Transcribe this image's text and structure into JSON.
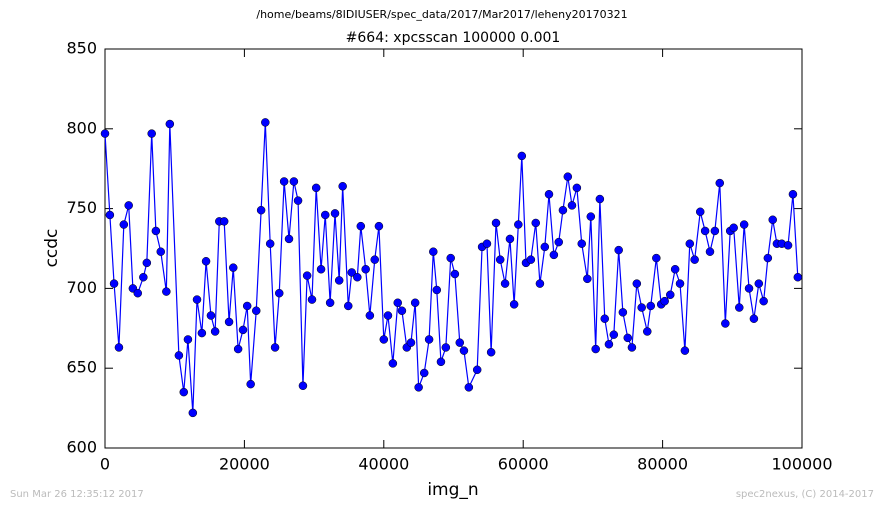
{
  "chart_data": {
    "type": "line",
    "suptitle": "/home/beams/8IDIUSER/spec_data/2017/Mar2017/leheny20170321",
    "title": "#664: xpcsscan 100000 0.001",
    "xlabel": "img_n",
    "ylabel": "ccdc",
    "footer_left": "Sun Mar 26 12:35:12 2017",
    "footer_right": "spec2nexus, (C) 2014-2017",
    "color": "#0000ff",
    "marker": "circle",
    "xlim": [
      0,
      100000
    ],
    "xticks": [
      0,
      20000,
      40000,
      60000,
      80000,
      100000
    ],
    "ylim": [
      600,
      850
    ],
    "yticks": [
      600,
      650,
      700,
      750,
      800,
      850
    ],
    "x": [
      0,
      700,
      1300,
      2000,
      2700,
      3400,
      4000,
      4700,
      5500,
      6000,
      6700,
      7300,
      8000,
      8800,
      9300,
      10600,
      11300,
      11900,
      12600,
      13200,
      13900,
      14500,
      15200,
      15800,
      16400,
      17100,
      17800,
      18400,
      19100,
      19800,
      20400,
      20900,
      21700,
      22400,
      23000,
      23700,
      24400,
      25000,
      25700,
      26400,
      27100,
      27700,
      28400,
      29000,
      29700,
      30300,
      31000,
      31600,
      32300,
      33000,
      33600,
      34100,
      34900,
      35400,
      36200,
      36700,
      37400,
      38000,
      38700,
      39300,
      40000,
      40600,
      41300,
      42000,
      42600,
      43300,
      43900,
      44500,
      45000,
      45800,
      46500,
      47100,
      47600,
      48200,
      48900,
      49600,
      50200,
      50900,
      51500,
      52200,
      53400,
      54100,
      54800,
      55400,
      56100,
      56700,
      57400,
      58100,
      58700,
      59300,
      59800,
      60400,
      61100,
      61800,
      62400,
      63100,
      63700,
      64400,
      65100,
      65700,
      66400,
      67000,
      67700,
      68400,
      69200,
      69700,
      70400,
      71000,
      71700,
      72300,
      73000,
      73700,
      74300,
      75000,
      75600,
      76300,
      77000,
      77800,
      78300,
      79100,
      79800,
      80300,
      81100,
      81800,
      82500,
      83200,
      83900,
      84600,
      85400,
      86100,
      86800,
      87500,
      88200,
      89000,
      89700,
      90200,
      91000,
      91700,
      92400,
      93100,
      93800,
      94500,
      95100,
      95800,
      96400,
      97100,
      98000,
      98700,
      99400
    ],
    "values": [
      797,
      746,
      703,
      663,
      740,
      752,
      700,
      697,
      707,
      716,
      797,
      736,
      723,
      698,
      803,
      658,
      635,
      668,
      622,
      693,
      672,
      717,
      683,
      673,
      742,
      742,
      679,
      713,
      662,
      674,
      689,
      640,
      686,
      749,
      804,
      728,
      663,
      697,
      767,
      731,
      767,
      755,
      639,
      708,
      693,
      763,
      712,
      746,
      691,
      747,
      705,
      764,
      689,
      710,
      707,
      739,
      712,
      683,
      718,
      739,
      668,
      683,
      653,
      691,
      686,
      663,
      666,
      691,
      638,
      647,
      668,
      723,
      699,
      654,
      663,
      719,
      709,
      666,
      661,
      638,
      649,
      726,
      728,
      660,
      741,
      718,
      703,
      731,
      690,
      740,
      783,
      716,
      718,
      741,
      703,
      726,
      759,
      721,
      729,
      749,
      770,
      752,
      763,
      728,
      706,
      745,
      662,
      756,
      681,
      665,
      671,
      724,
      685,
      669,
      663,
      703,
      688,
      673,
      689,
      719,
      690,
      692,
      696,
      712,
      703,
      661,
      728,
      718,
      748,
      736,
      723,
      736,
      766,
      678,
      736,
      738,
      688,
      740,
      700,
      681,
      703,
      692,
      719,
      743,
      728,
      728,
      727,
      759,
      707
    ]
  }
}
